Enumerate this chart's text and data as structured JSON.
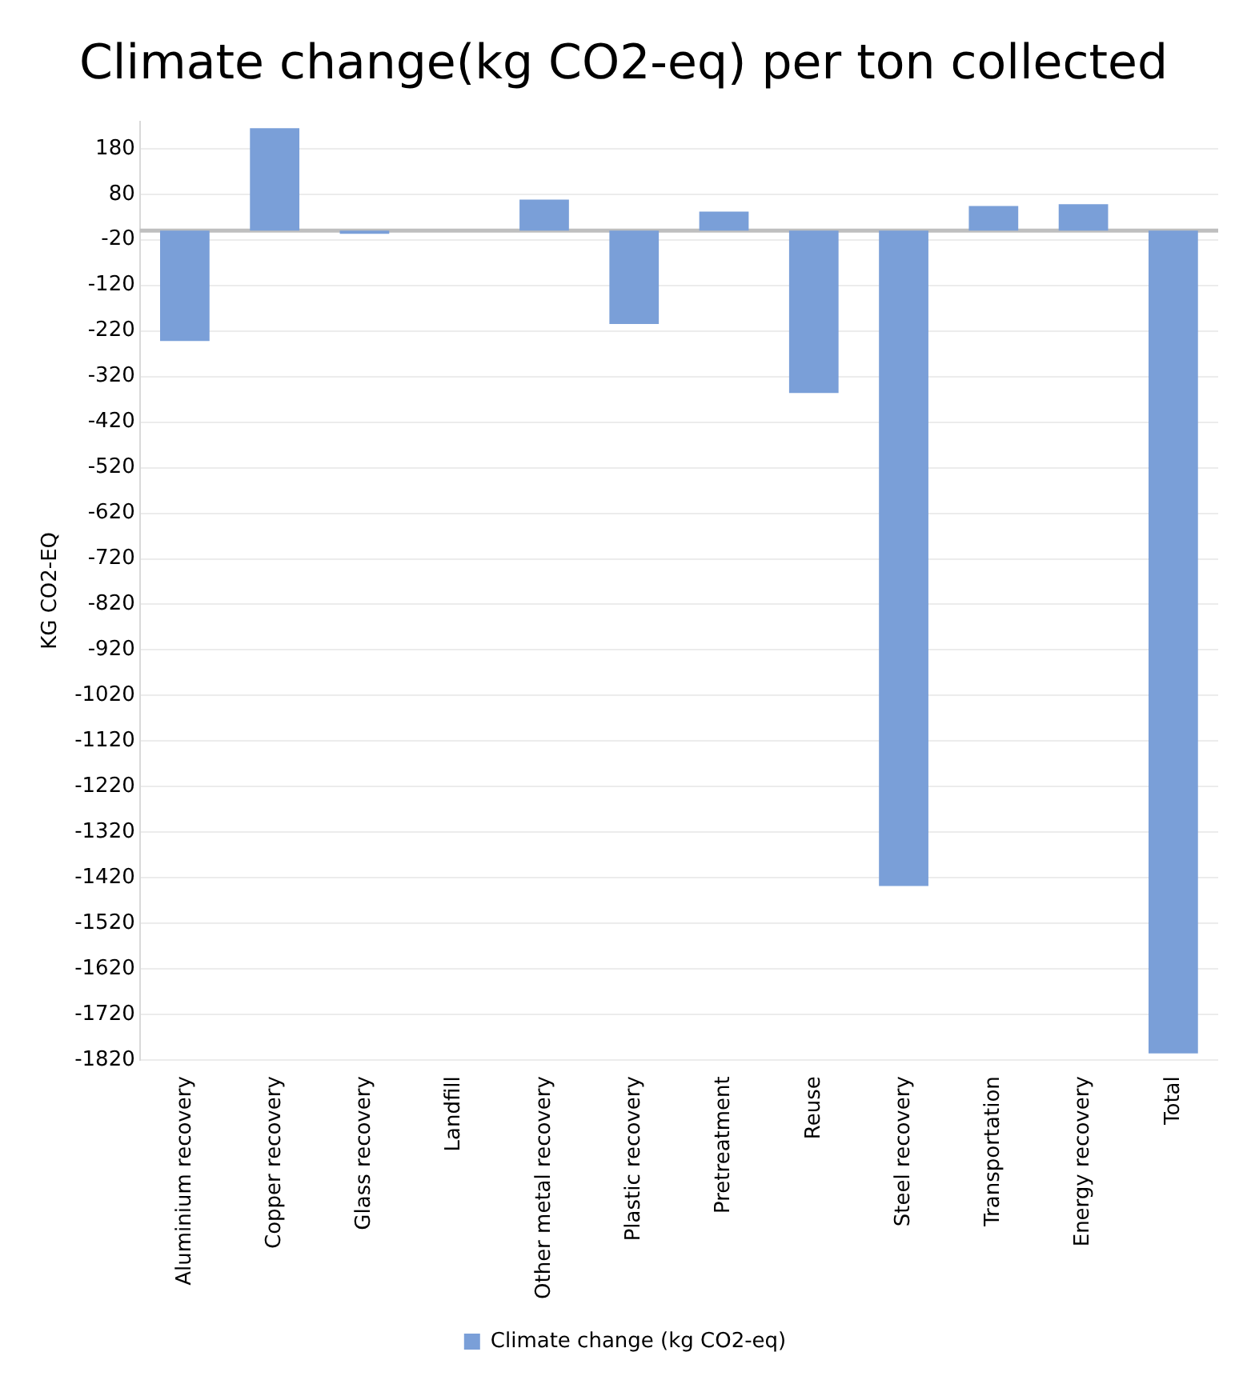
{
  "chart_data": {
    "type": "bar",
    "title": "Climate change(kg CO2-eq) per ton collected",
    "ylabel": "KG CO2-EQ",
    "categories": [
      "Aluminium recovery",
      "Copper recovery",
      "Glass recovery",
      "Landfill",
      "Other metal recovery",
      "Plastic recovery",
      "Pretreatment",
      "Reuse",
      "Steel recovery",
      "Transportation",
      "Energy recovery",
      "Total"
    ],
    "series": [
      {
        "name": "Climate change (kg CO2-eq)",
        "color": "#7a9fd8",
        "values": [
          -242,
          225,
          -7,
          0,
          68,
          -205,
          42,
          -356,
          -1438,
          54,
          58,
          -1805
        ]
      }
    ],
    "ylim": [
      -1820,
      240
    ],
    "yticks": [
      180,
      80,
      -20,
      -120,
      -220,
      -320,
      -420,
      -520,
      -620,
      -720,
      -820,
      -920,
      -1020,
      -1120,
      -1220,
      -1320,
      -1420,
      -1520,
      -1620,
      -1720,
      -1820
    ],
    "grid": "y",
    "legend": "bottom"
  }
}
